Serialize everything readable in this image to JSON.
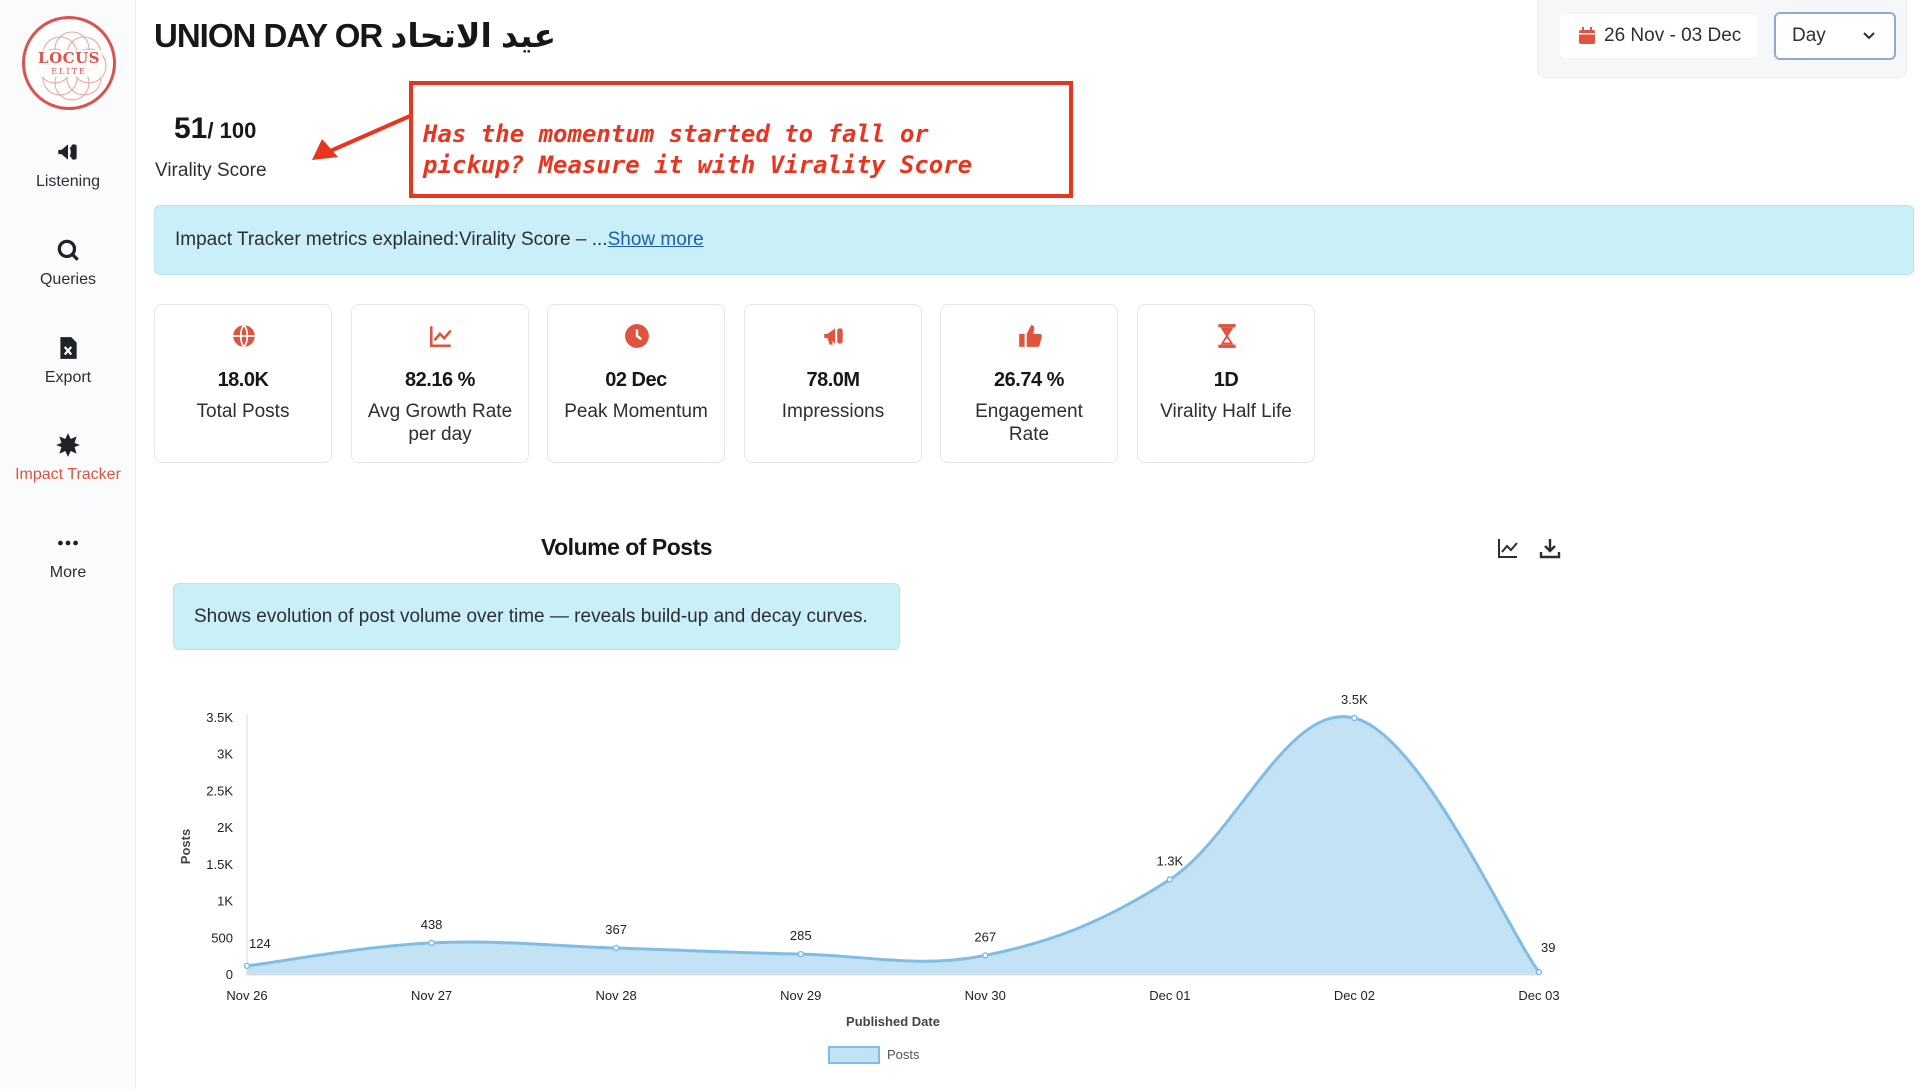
{
  "sidebar": {
    "logo": {
      "name": "LOCUS",
      "sub": "ELITE"
    },
    "items": [
      {
        "label": "Listening",
        "icon": "megaphone-icon",
        "active": false
      },
      {
        "label": "Queries",
        "icon": "search-icon",
        "active": false
      },
      {
        "label": "Export",
        "icon": "excel-file-icon",
        "active": false
      },
      {
        "label": "Impact Tracker",
        "icon": "starburst-icon",
        "active": true
      },
      {
        "label": "More",
        "icon": "more-dots-icon",
        "active": false
      }
    ]
  },
  "header": {
    "title": "UNION DAY OR عيد الاتحاد",
    "date_range": "26 Nov - 03 Dec",
    "granularity": "Day"
  },
  "virality": {
    "score": "51",
    "max": "/ 100",
    "label": "Virality Score"
  },
  "annotation": {
    "text": "Has the momentum started to fall or\npickup? Measure it with Virality Score",
    "color": "#e8351f"
  },
  "info_banner": {
    "text": "Impact Tracker metrics explained:Virality Score – ...",
    "link": "Show more"
  },
  "metrics": [
    {
      "value": "18.0K",
      "label": "Total Posts",
      "icon": "globe-icon"
    },
    {
      "value": "82.16 %",
      "label": "Avg Growth Rate per day",
      "icon": "line-chart-icon"
    },
    {
      "value": "02 Dec",
      "label": "Peak Momentum",
      "icon": "clock-icon"
    },
    {
      "value": "78.0M",
      "label": "Impressions",
      "icon": "megaphone-icon"
    },
    {
      "value": "26.74 %",
      "label": "Engagement Rate",
      "icon": "thumbs-up-icon"
    },
    {
      "value": "1D",
      "label": "Virality Half Life",
      "icon": "hourglass-icon"
    }
  ],
  "chart_section": {
    "title": "Volume of Posts",
    "description": "Shows evolution of post volume over time — reveals build-up and decay curves.",
    "tools": [
      "line-chart-icon",
      "download-icon"
    ]
  },
  "chart_data": {
    "type": "area",
    "x": [
      "Nov 26",
      "Nov 27",
      "Nov 28",
      "Nov 29",
      "Nov 30",
      "Dec 01",
      "Dec 02",
      "Dec 03"
    ],
    "series": [
      {
        "name": "Posts",
        "values": [
          124,
          438,
          367,
          285,
          267,
          1300,
          3500,
          39
        ],
        "labels": [
          "124",
          "438",
          "367",
          "285",
          "267",
          "1.3K",
          "3.5K",
          "39"
        ]
      }
    ],
    "xlabel": "Published Date",
    "ylabel": "Posts",
    "ylim": [
      0,
      3500
    ],
    "yticks": [
      0,
      500,
      1000,
      1500,
      2000,
      2500,
      3000,
      3500
    ],
    "ytick_labels": [
      "0",
      "500",
      "1K",
      "1.5K",
      "2K",
      "2.5K",
      "3K",
      "3.5K"
    ],
    "legend": "bottom",
    "grid": false,
    "colors": {
      "line": "#7fbde6",
      "fill": "#c3e2f4"
    }
  },
  "colors": {
    "accent": "#e0533f",
    "banner": "#c9eff9"
  }
}
